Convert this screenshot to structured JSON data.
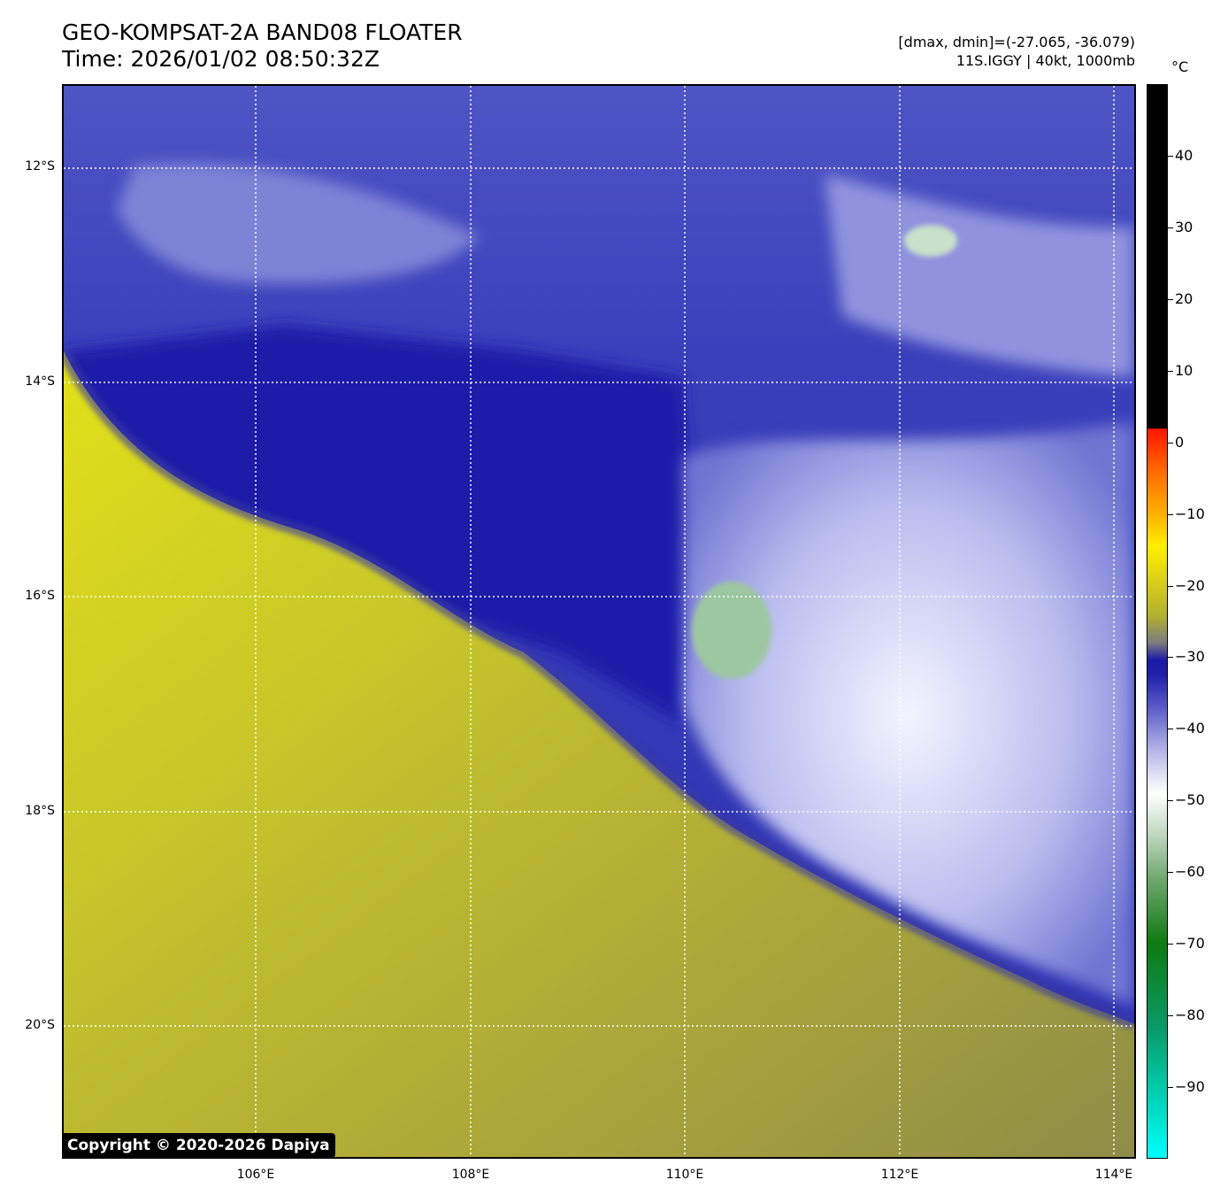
{
  "header": {
    "title_line1": "GEO-KOMPSAT-2A BAND08 FLOATER",
    "title_line2": "Time: 2026/01/02 08:50:32Z",
    "info_line1": "[dmax, dmin]=(-27.065, -36.079)",
    "info_line2": "11S.IGGY | 40kt, 1000mb"
  },
  "map": {
    "lat_labels": [
      "12°S",
      "14°S",
      "16°S",
      "18°S",
      "20°S"
    ],
    "lon_labels": [
      "106°E",
      "108°E",
      "110°E",
      "112°E",
      "114°E"
    ],
    "lat_values": [
      -12,
      -14,
      -16,
      -18,
      -20
    ],
    "lon_values": [
      106,
      108,
      110,
      112,
      114
    ],
    "lon_range": [
      104.2,
      114.2
    ],
    "lat_range": [
      -11.25,
      -21.25
    ],
    "grid": "dotted-white",
    "copyright": "Copyright © 2020-2026 Dapiya"
  },
  "colorbar": {
    "unit": "°C",
    "tick_labels": [
      "40",
      "30",
      "20",
      "10",
      "0",
      "−10",
      "−20",
      "−30",
      "−40",
      "−50",
      "−60",
      "−70",
      "−80",
      "−90"
    ],
    "tick_values": [
      40,
      30,
      20,
      10,
      0,
      -10,
      -20,
      -30,
      -40,
      -50,
      -60,
      -70,
      -80,
      -90
    ],
    "range": [
      -100,
      50
    ]
  },
  "colors": {
    "dry_air": "#c9c72a",
    "moist": "#2a2fb0",
    "cloud_top": "#eef0ff",
    "cold_core": "#8fbf95",
    "grid": "#ffffff"
  }
}
